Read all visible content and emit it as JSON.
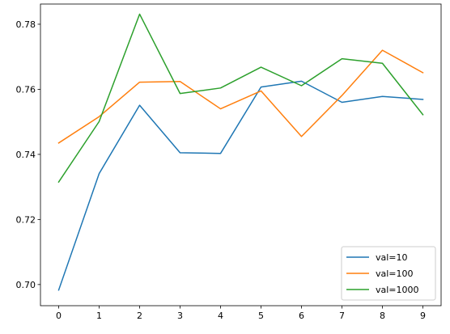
{
  "chart_data": {
    "type": "line",
    "title": "",
    "xlabel": "",
    "ylabel": "",
    "x": [
      0,
      1,
      2,
      3,
      4,
      5,
      6,
      7,
      8,
      9
    ],
    "xlim": [
      -0.45,
      9.45
    ],
    "ylim": [
      0.6935,
      0.7862
    ],
    "xticks": [
      "0",
      "1",
      "2",
      "3",
      "4",
      "5",
      "6",
      "7",
      "8",
      "9"
    ],
    "yticks": [
      "0.70",
      "0.72",
      "0.74",
      "0.76",
      "0.78"
    ],
    "grid": false,
    "legend_position": "bottom-right",
    "series": [
      {
        "name": "val=10",
        "color": "#1f77b4",
        "values": [
          0.6983,
          0.7341,
          0.7551,
          0.7405,
          0.7403,
          0.7607,
          0.7625,
          0.756,
          0.7578,
          0.7569
        ]
      },
      {
        "name": "val=100",
        "color": "#ff7f0e",
        "values": [
          0.7435,
          0.7516,
          0.7622,
          0.7624,
          0.754,
          0.7595,
          0.7455,
          0.7581,
          0.772,
          0.7651
        ]
      },
      {
        "name": "val=1000",
        "color": "#2ca02c",
        "values": [
          0.7315,
          0.7501,
          0.7831,
          0.7587,
          0.7604,
          0.7668,
          0.7611,
          0.7694,
          0.768,
          0.7522
        ]
      }
    ]
  }
}
